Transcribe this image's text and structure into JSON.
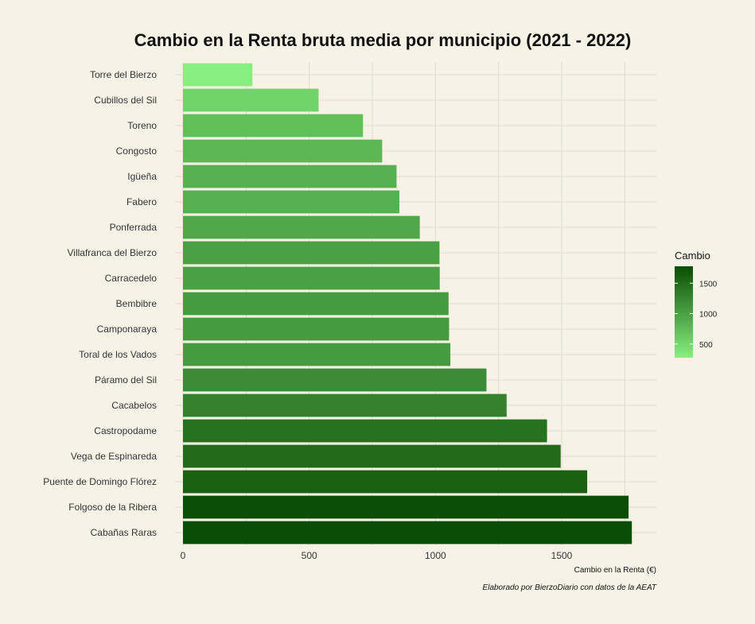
{
  "chart_data": {
    "type": "bar",
    "orientation": "horizontal",
    "title": "Cambio en la Renta bruta media por municipio (2021 - 2022)",
    "xlabel": "Cambio en la Renta (€)",
    "ylabel": "",
    "caption": "Elaborado por BierzoDiario con datos de la AEAT",
    "xlim": [
      0,
      1875
    ],
    "x_ticks": [
      0,
      500,
      1000,
      1500
    ],
    "grid": true,
    "categories": [
      "Torre del Bierzo",
      "Cubillos del Sil",
      "Toreno",
      "Congosto",
      "Igüeña",
      "Fabero",
      "Ponferrada",
      "Villafranca del Bierzo",
      "Carracedelo",
      "Bembibre",
      "Camponaraya",
      "Toral de los Vados",
      "Páramo del Sil",
      "Cacabelos",
      "Castropodame",
      "Vega de Espinareda",
      "Puente de Domingo Flórez",
      "Folgoso de la Ribera",
      "Cabañas Raras"
    ],
    "values": [
      275,
      537,
      713,
      789,
      846,
      857,
      938,
      1016,
      1017,
      1052,
      1054,
      1059,
      1202,
      1282,
      1442,
      1496,
      1601,
      1765,
      1778
    ],
    "legend": {
      "title": "Cambio",
      "position": "right",
      "ticks": [
        500,
        1000,
        1500
      ],
      "range": [
        275,
        1778
      ],
      "color_low": "#86ef7f",
      "color_high": "#0b4d04"
    }
  }
}
